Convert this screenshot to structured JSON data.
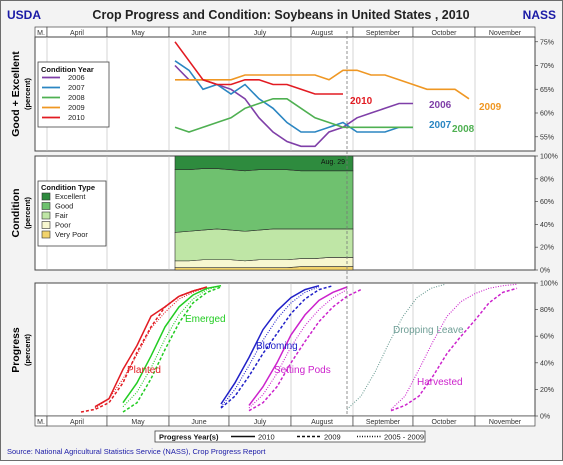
{
  "header": {
    "left_label": "USDA",
    "title": "Crop Progress and Condition: Soybeans in United States , 2010",
    "right_label": "NASS"
  },
  "months": [
    "M.",
    "April",
    "May",
    "June",
    "July",
    "August",
    "September",
    "October",
    "November"
  ],
  "source_text": "Source: National Agricultural Statistics Service (NASS), Crop Progress Report",
  "colors": {
    "header_text": "#1a1aa6",
    "y2006": "#7f3fa8",
    "y2007": "#2b86c2",
    "y2008": "#4fb052",
    "y2009": "#ef9723",
    "y2010": "#e21b22",
    "excellent": "#2e8b3e",
    "good": "#6fc16f",
    "fair": "#bfe6a6",
    "poor": "#f7f7d0",
    "very_poor": "#f2d36b",
    "planted": "#e21b22",
    "emerged": "#22cc22",
    "blooming": "#2020c8",
    "setting_pods": "#cc22cc",
    "dropping_leaves": "#6f9e96",
    "harvested": "#cc22cc"
  },
  "chart_data": [
    {
      "type": "line",
      "title": "",
      "ylabel": "Good + Excellent",
      "ylabel_unit": "(percent)",
      "ylim": [
        52,
        76
      ],
      "yticks": [
        "55%",
        "60%",
        "65%",
        "70%",
        "75%"
      ],
      "legend_title": "Condition Year",
      "legend_placement": "top-left",
      "series": [
        {
          "name": "2006",
          "x": [
            "06-04",
            "06-11",
            "06-18",
            "06-25",
            "07-02",
            "07-09",
            "07-16",
            "07-23",
            "07-30",
            "08-06",
            "08-13",
            "08-20",
            "08-27",
            "09-03",
            "09-10",
            "09-17",
            "09-24",
            "10-01"
          ],
          "values": [
            70,
            67,
            67,
            66,
            65,
            63,
            59,
            56,
            54,
            53,
            53,
            56,
            57,
            59,
            60,
            61,
            62,
            62
          ]
        },
        {
          "name": "2007",
          "x": [
            "06-04",
            "06-11",
            "06-18",
            "06-25",
            "07-02",
            "07-09",
            "07-16",
            "07-23",
            "07-30",
            "08-06",
            "08-13",
            "08-20",
            "08-27",
            "09-03",
            "09-10",
            "09-17",
            "09-24",
            "10-01"
          ],
          "values": [
            71,
            69,
            65,
            66,
            64,
            66,
            63,
            61,
            58,
            56,
            56,
            57,
            58,
            56,
            56,
            56,
            57,
            57
          ]
        },
        {
          "name": "2008",
          "x": [
            "06-04",
            "06-11",
            "06-18",
            "06-25",
            "07-02",
            "07-09",
            "07-16",
            "07-23",
            "07-30",
            "08-06",
            "08-13",
            "08-20",
            "08-27",
            "09-03",
            "09-10",
            "09-17",
            "09-24",
            "10-01"
          ],
          "values": [
            57,
            56,
            57,
            58,
            59,
            61,
            62,
            63,
            63,
            61,
            59,
            58,
            57,
            57,
            57,
            57,
            57,
            57
          ]
        },
        {
          "name": "2009",
          "x": [
            "06-04",
            "06-11",
            "06-18",
            "06-25",
            "07-02",
            "07-09",
            "07-16",
            "07-23",
            "07-30",
            "08-06",
            "08-13",
            "08-20",
            "08-27",
            "09-03",
            "09-10",
            "09-17",
            "09-24",
            "10-01",
            "10-08",
            "10-15",
            "10-22",
            "10-29"
          ],
          "values": [
            67,
            67,
            67,
            67,
            67,
            68,
            68,
            68,
            68,
            68,
            68,
            67,
            69,
            69,
            68,
            68,
            67,
            66,
            65,
            65,
            65,
            63
          ]
        },
        {
          "name": "2010",
          "x": [
            "06-04",
            "06-11",
            "06-18",
            "06-25",
            "07-02",
            "07-09",
            "07-16",
            "07-23",
            "07-30",
            "08-06",
            "08-13",
            "08-20",
            "08-27"
          ],
          "values": [
            75,
            71,
            67,
            66,
            66,
            67,
            67,
            66,
            66,
            65,
            64,
            64,
            64
          ]
        }
      ],
      "series_labels": [
        "2010",
        "2006",
        "2009",
        "2007",
        "2008"
      ]
    },
    {
      "type": "area",
      "title": "",
      "ylabel": "Condition",
      "ylabel_unit": "(percent)",
      "ylim": [
        0,
        100
      ],
      "yticks": [
        "0%",
        "20%",
        "40%",
        "60%",
        "80%",
        "100%"
      ],
      "legend_title": "Condition Type",
      "legend_placement": "left",
      "annotation": "Aug. 29",
      "series": [
        {
          "name": "Excellent",
          "values": [
            12,
            12,
            11,
            11,
            12,
            13,
            12,
            12,
            12,
            13,
            13,
            13,
            13
          ]
        },
        {
          "name": "Good",
          "values": [
            55,
            54,
            54,
            53,
            53,
            53,
            53,
            52,
            52,
            51,
            51,
            51,
            51
          ]
        },
        {
          "name": "Fair",
          "values": [
            25,
            26,
            26,
            27,
            26,
            26,
            26,
            27,
            27,
            26,
            26,
            25,
            25
          ]
        },
        {
          "name": "Poor",
          "values": [
            6,
            6,
            7,
            7,
            7,
            6,
            7,
            7,
            7,
            7,
            7,
            8,
            8
          ]
        },
        {
          "name": "Very Poor",
          "values": [
            2,
            2,
            2,
            2,
            2,
            2,
            2,
            2,
            2,
            3,
            3,
            3,
            3
          ]
        }
      ],
      "x": [
        "06-04",
        "06-11",
        "06-18",
        "06-25",
        "07-02",
        "07-09",
        "07-16",
        "07-23",
        "07-30",
        "08-06",
        "08-13",
        "08-20",
        "08-27"
      ]
    },
    {
      "type": "line",
      "title": "",
      "ylabel": "Progress",
      "ylabel_unit": "(percent)",
      "ylim": [
        0,
        100
      ],
      "yticks": [
        "0%",
        "20%",
        "40%",
        "60%",
        "80%",
        "100%"
      ],
      "legend_title": "Progress Year(s)",
      "legend_placement": "bottom",
      "legend_entries": [
        "2010",
        "2009",
        "2005 - 2009"
      ],
      "stages": [
        {
          "name": "Planted",
          "label": "Planted",
          "y2010": {
            "x": [
              "04-25",
              "05-02",
              "05-09",
              "05-16",
              "05-23",
              "05-30",
              "06-06",
              "06-13",
              "06-20"
            ],
            "values": [
              7,
              13,
              35,
              53,
              75,
              82,
              90,
              94,
              97
            ]
          },
          "y2009": {
            "x": [
              "04-18",
              "04-25",
              "05-02",
              "05-09",
              "05-16",
              "05-23",
              "05-30",
              "06-06",
              "06-13",
              "06-20"
            ],
            "values": [
              3,
              5,
              10,
              25,
              48,
              67,
              82,
              90,
              94,
              97
            ]
          },
          "avg": {
            "x": [
              "04-25",
              "05-02",
              "05-09",
              "05-16",
              "05-23",
              "05-30",
              "06-06",
              "06-13",
              "06-20"
            ],
            "values": [
              6,
              13,
              28,
              46,
              66,
              78,
              88,
              93,
              97
            ]
          }
        },
        {
          "name": "Emerged",
          "label": "Emerged",
          "y2010": {
            "x": [
              "05-09",
              "05-16",
              "05-23",
              "05-30",
              "06-06",
              "06-13",
              "06-20",
              "06-27"
            ],
            "values": [
              10,
              25,
              45,
              67,
              82,
              91,
              96,
              98
            ]
          },
          "y2009": {
            "x": [
              "05-09",
              "05-16",
              "05-23",
              "05-30",
              "06-06",
              "06-13",
              "06-20",
              "06-27"
            ],
            "values": [
              3,
              10,
              28,
              50,
              70,
              85,
              93,
              97
            ]
          },
          "avg": {
            "x": [
              "05-09",
              "05-16",
              "05-23",
              "05-30",
              "06-06",
              "06-13",
              "06-20",
              "06-27"
            ],
            "values": [
              7,
              18,
              36,
              58,
              76,
              88,
              95,
              98
            ]
          }
        },
        {
          "name": "Blooming",
          "label": "Blooming",
          "y2010": {
            "x": [
              "06-27",
              "07-04",
              "07-11",
              "07-18",
              "07-25",
              "08-01",
              "08-08",
              "08-15"
            ],
            "values": [
              9,
              25,
              44,
              65,
              79,
              89,
              95,
              98
            ]
          },
          "y2009": {
            "x": [
              "06-27",
              "07-04",
              "07-11",
              "07-18",
              "07-25",
              "08-01",
              "08-08",
              "08-15",
              "08-22"
            ],
            "values": [
              6,
              15,
              30,
              47,
              62,
              77,
              88,
              95,
              98
            ]
          },
          "avg": {
            "x": [
              "06-27",
              "07-04",
              "07-11",
              "07-18",
              "07-25",
              "08-01",
              "08-08",
              "08-15"
            ],
            "values": [
              7,
              20,
              38,
              57,
              73,
              85,
              93,
              97
            ]
          }
        },
        {
          "name": "Setting Pods",
          "label": "Setting Pods",
          "y2010": {
            "x": [
              "07-11",
              "07-18",
              "07-25",
              "08-01",
              "08-08",
              "08-15",
              "08-22",
              "08-29"
            ],
            "values": [
              8,
              22,
              40,
              61,
              76,
              87,
              93,
              97
            ]
          },
          "y2009": {
            "x": [
              "07-11",
              "07-18",
              "07-25",
              "08-01",
              "08-08",
              "08-15",
              "08-22",
              "08-29",
              "09-05"
            ],
            "values": [
              4,
              10,
              22,
              40,
              56,
              71,
              82,
              90,
              95
            ]
          },
          "avg": {
            "x": [
              "07-11",
              "07-18",
              "07-25",
              "08-01",
              "08-08",
              "08-15",
              "08-22",
              "08-29"
            ],
            "values": [
              6,
              16,
              32,
              52,
              68,
              80,
              89,
              95
            ]
          }
        },
        {
          "name": "Dropping Leaves",
          "label": "Dropping Leave",
          "avg": {
            "x": [
              "08-29",
              "09-05",
              "09-12",
              "09-19",
              "09-26",
              "10-03",
              "10-10",
              "10-17"
            ],
            "values": [
              5,
              15,
              33,
              55,
              75,
              89,
              96,
              99
            ]
          }
        },
        {
          "name": "Harvested",
          "label": "Harvested",
          "y2009": {
            "x": [
              "09-20",
              "09-27",
              "10-04",
              "10-11",
              "10-18",
              "10-25",
              "11-01",
              "11-08",
              "11-15",
              "11-22"
            ],
            "values": [
              4,
              8,
              15,
              30,
              47,
              60,
              72,
              85,
              93,
              96
            ]
          },
          "avg": {
            "x": [
              "09-20",
              "09-27",
              "10-04",
              "10-11",
              "10-18",
              "10-25",
              "11-01",
              "11-08",
              "11-15",
              "11-22"
            ],
            "values": [
              5,
              15,
              35,
              56,
              75,
              86,
              92,
              96,
              98,
              99
            ]
          }
        }
      ]
    }
  ]
}
